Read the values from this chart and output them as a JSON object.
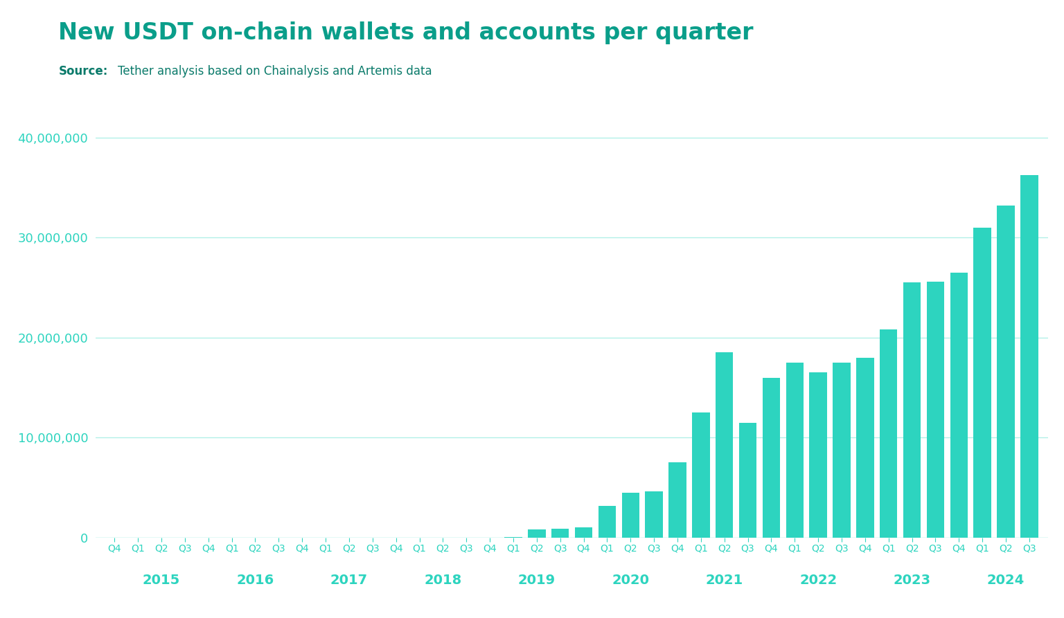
{
  "title": "New USDT on-chain wallets and accounts per quarter",
  "source_label": "Source:",
  "source_text": "Tether analysis based on Chainalysis and Artemis data",
  "bar_color": "#2dd4bf",
  "grid_color": "#b2f0e8",
  "background_color": "#ffffff",
  "title_color": "#0a9e8a",
  "tick_color": "#2dd4bf",
  "source_label_color": "#0a7a6a",
  "ylim": [
    0,
    42000000
  ],
  "yticks": [
    0,
    10000000,
    20000000,
    30000000,
    40000000
  ],
  "quarter_labels": [
    "Q4",
    "Q1",
    "Q2",
    "Q3",
    "Q4",
    "Q1",
    "Q2",
    "Q3",
    "Q4",
    "Q1",
    "Q2",
    "Q3",
    "Q4",
    "Q1",
    "Q2",
    "Q3",
    "Q4",
    "Q1",
    "Q2",
    "Q3",
    "Q4",
    "Q1",
    "Q2",
    "Q3",
    "Q4",
    "Q1",
    "Q2",
    "Q3",
    "Q4",
    "Q1",
    "Q2",
    "Q3",
    "Q4",
    "Q1",
    "Q2",
    "Q3",
    "Q4",
    "Q1",
    "Q2",
    "Q3"
  ],
  "year_labels": [
    "2015",
    "2016",
    "2017",
    "2018",
    "2019",
    "2020",
    "2021",
    "2022",
    "2023",
    "2024"
  ],
  "year_center_indices": [
    2.0,
    6.0,
    10.0,
    14.0,
    18.0,
    22.0,
    26.0,
    30.0,
    34.0,
    38.0
  ],
  "values": [
    0,
    0,
    0,
    0,
    0,
    0,
    0,
    0,
    0,
    0,
    0,
    0,
    0,
    0,
    0,
    0,
    0,
    50000,
    800000,
    900000,
    1000000,
    3200000,
    4500000,
    4600000,
    7500000,
    12500000,
    18500000,
    11500000,
    16000000,
    17500000,
    16500000,
    17500000,
    18000000,
    20800000,
    25500000,
    25600000,
    26500000,
    31000000,
    33200000,
    36250000
  ]
}
